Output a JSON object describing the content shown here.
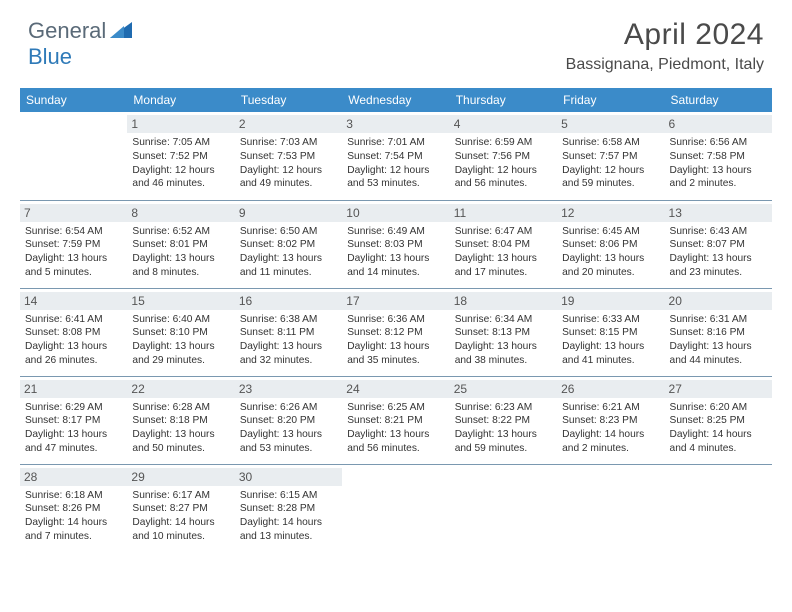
{
  "brand": {
    "part1": "General",
    "part2": "Blue"
  },
  "title": "April 2024",
  "location": "Bassignana, Piedmont, Italy",
  "colors": {
    "header_bg": "#3b8bc9",
    "header_text": "#ffffff",
    "daybar_bg": "#e9edf0",
    "rule": "#7a98b0",
    "text": "#333333",
    "brand_gray": "#5a6a78",
    "brand_blue": "#2f7ab8"
  },
  "weekdays": [
    "Sunday",
    "Monday",
    "Tuesday",
    "Wednesday",
    "Thursday",
    "Friday",
    "Saturday"
  ],
  "first_weekday_index": 1,
  "days": [
    {
      "n": 1,
      "sr": "7:05 AM",
      "ss": "7:52 PM",
      "dl": "12 hours and 46 minutes."
    },
    {
      "n": 2,
      "sr": "7:03 AM",
      "ss": "7:53 PM",
      "dl": "12 hours and 49 minutes."
    },
    {
      "n": 3,
      "sr": "7:01 AM",
      "ss": "7:54 PM",
      "dl": "12 hours and 53 minutes."
    },
    {
      "n": 4,
      "sr": "6:59 AM",
      "ss": "7:56 PM",
      "dl": "12 hours and 56 minutes."
    },
    {
      "n": 5,
      "sr": "6:58 AM",
      "ss": "7:57 PM",
      "dl": "12 hours and 59 minutes."
    },
    {
      "n": 6,
      "sr": "6:56 AM",
      "ss": "7:58 PM",
      "dl": "13 hours and 2 minutes."
    },
    {
      "n": 7,
      "sr": "6:54 AM",
      "ss": "7:59 PM",
      "dl": "13 hours and 5 minutes."
    },
    {
      "n": 8,
      "sr": "6:52 AM",
      "ss": "8:01 PM",
      "dl": "13 hours and 8 minutes."
    },
    {
      "n": 9,
      "sr": "6:50 AM",
      "ss": "8:02 PM",
      "dl": "13 hours and 11 minutes."
    },
    {
      "n": 10,
      "sr": "6:49 AM",
      "ss": "8:03 PM",
      "dl": "13 hours and 14 minutes."
    },
    {
      "n": 11,
      "sr": "6:47 AM",
      "ss": "8:04 PM",
      "dl": "13 hours and 17 minutes."
    },
    {
      "n": 12,
      "sr": "6:45 AM",
      "ss": "8:06 PM",
      "dl": "13 hours and 20 minutes."
    },
    {
      "n": 13,
      "sr": "6:43 AM",
      "ss": "8:07 PM",
      "dl": "13 hours and 23 minutes."
    },
    {
      "n": 14,
      "sr": "6:41 AM",
      "ss": "8:08 PM",
      "dl": "13 hours and 26 minutes."
    },
    {
      "n": 15,
      "sr": "6:40 AM",
      "ss": "8:10 PM",
      "dl": "13 hours and 29 minutes."
    },
    {
      "n": 16,
      "sr": "6:38 AM",
      "ss": "8:11 PM",
      "dl": "13 hours and 32 minutes."
    },
    {
      "n": 17,
      "sr": "6:36 AM",
      "ss": "8:12 PM",
      "dl": "13 hours and 35 minutes."
    },
    {
      "n": 18,
      "sr": "6:34 AM",
      "ss": "8:13 PM",
      "dl": "13 hours and 38 minutes."
    },
    {
      "n": 19,
      "sr": "6:33 AM",
      "ss": "8:15 PM",
      "dl": "13 hours and 41 minutes."
    },
    {
      "n": 20,
      "sr": "6:31 AM",
      "ss": "8:16 PM",
      "dl": "13 hours and 44 minutes."
    },
    {
      "n": 21,
      "sr": "6:29 AM",
      "ss": "8:17 PM",
      "dl": "13 hours and 47 minutes."
    },
    {
      "n": 22,
      "sr": "6:28 AM",
      "ss": "8:18 PM",
      "dl": "13 hours and 50 minutes."
    },
    {
      "n": 23,
      "sr": "6:26 AM",
      "ss": "8:20 PM",
      "dl": "13 hours and 53 minutes."
    },
    {
      "n": 24,
      "sr": "6:25 AM",
      "ss": "8:21 PM",
      "dl": "13 hours and 56 minutes."
    },
    {
      "n": 25,
      "sr": "6:23 AM",
      "ss": "8:22 PM",
      "dl": "13 hours and 59 minutes."
    },
    {
      "n": 26,
      "sr": "6:21 AM",
      "ss": "8:23 PM",
      "dl": "14 hours and 2 minutes."
    },
    {
      "n": 27,
      "sr": "6:20 AM",
      "ss": "8:25 PM",
      "dl": "14 hours and 4 minutes."
    },
    {
      "n": 28,
      "sr": "6:18 AM",
      "ss": "8:26 PM",
      "dl": "14 hours and 7 minutes."
    },
    {
      "n": 29,
      "sr": "6:17 AM",
      "ss": "8:27 PM",
      "dl": "14 hours and 10 minutes."
    },
    {
      "n": 30,
      "sr": "6:15 AM",
      "ss": "8:28 PM",
      "dl": "14 hours and 13 minutes."
    }
  ],
  "labels": {
    "sunrise": "Sunrise:",
    "sunset": "Sunset:",
    "daylight": "Daylight:"
  }
}
